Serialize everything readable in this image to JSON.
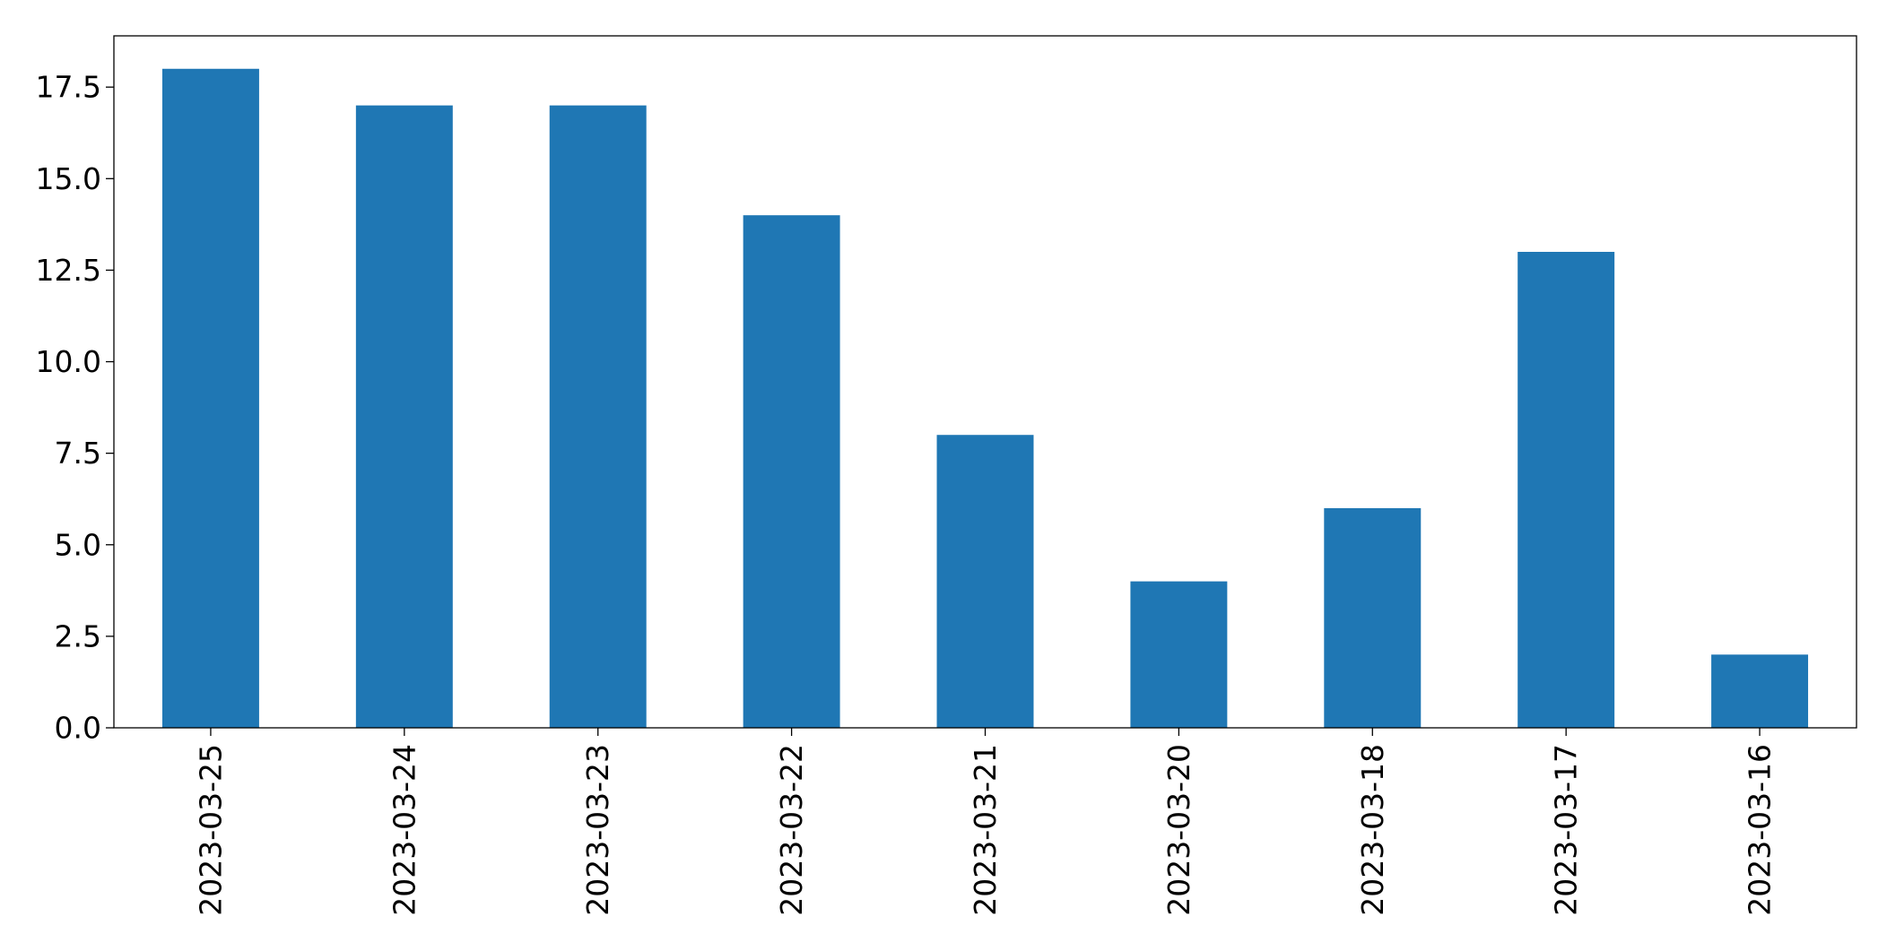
{
  "chart_data": {
    "type": "bar",
    "title": "",
    "xlabel": "",
    "ylabel": "",
    "categories": [
      "2023-03-25",
      "2023-03-24",
      "2023-03-23",
      "2023-03-22",
      "2023-03-21",
      "2023-03-20",
      "2023-03-18",
      "2023-03-17",
      "2023-03-16"
    ],
    "values": [
      18,
      17,
      17,
      14,
      8,
      4,
      6,
      13,
      2
    ],
    "ylim": [
      0,
      18.9
    ],
    "yticks": [
      "0.0",
      "2.5",
      "5.0",
      "7.5",
      "10.0",
      "12.5",
      "15.0",
      "17.5"
    ],
    "grid": false,
    "legend": "none",
    "bar_color": "#1f77b4"
  }
}
